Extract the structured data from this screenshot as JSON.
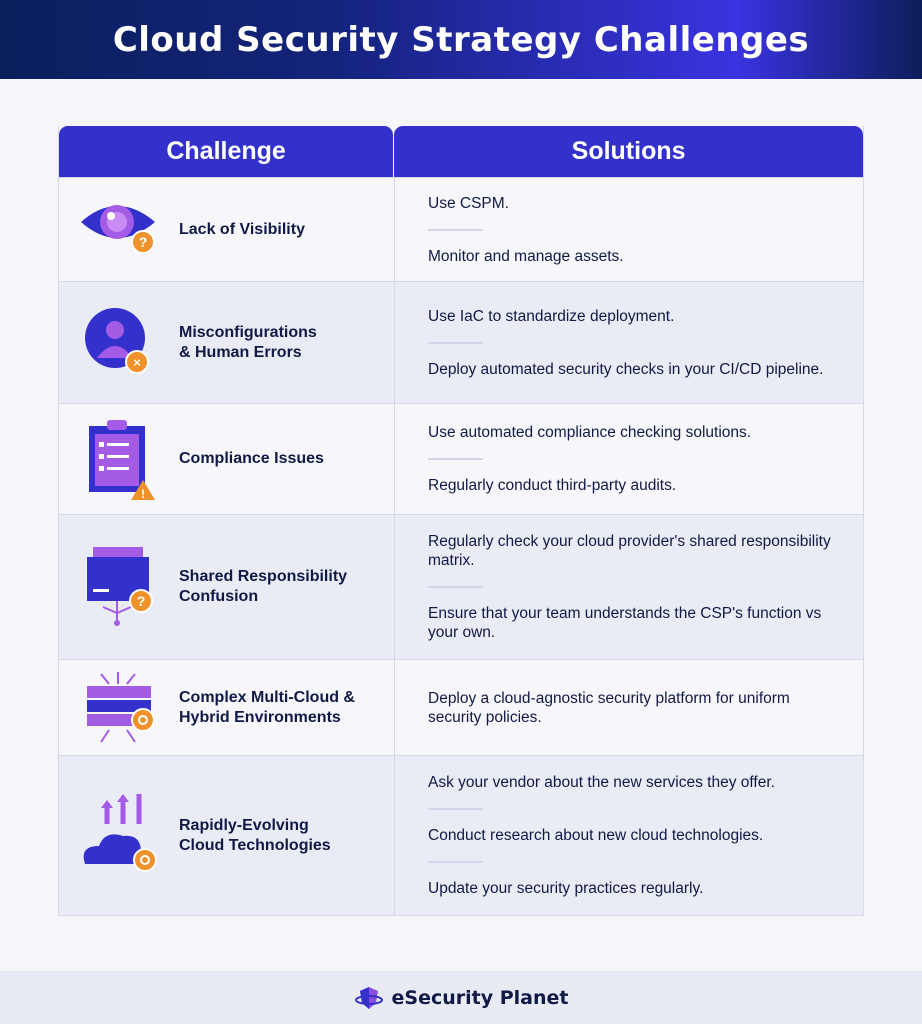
{
  "title": "Cloud Security Strategy Challenges",
  "headers": {
    "challenge": "Challenge",
    "solutions": "Solutions"
  },
  "rows": [
    {
      "icon": "eye-question-icon",
      "challenge": "Lack of Visibility",
      "solutions": [
        "Use CSPM.",
        "Monitor and manage assets."
      ]
    },
    {
      "icon": "user-error-icon",
      "challenge": "Misconfigurations\n& Human Errors",
      "solutions": [
        "Use IaC to standardize deployment.",
        "Deploy automated security checks in your CI/CD pipeline."
      ]
    },
    {
      "icon": "clipboard-warning-icon",
      "challenge": "Compliance Issues",
      "solutions": [
        "Use automated compliance checking solutions.",
        "Regularly conduct third-party audits."
      ]
    },
    {
      "icon": "folder-question-icon",
      "challenge": "Shared Responsibility\nConfusion",
      "solutions": [
        "Regularly check your cloud provider's shared responsibility matrix.",
        "Ensure that your team understands the CSP's function vs your own."
      ]
    },
    {
      "icon": "server-gear-icon",
      "challenge": "Complex Multi-Cloud &\nHybrid Environments",
      "solutions": [
        "Deploy a cloud-agnostic security platform for uniform security policies."
      ]
    },
    {
      "icon": "cloud-growth-icon",
      "challenge": "Rapidly-Evolving\nCloud Technologies",
      "solutions": [
        "Ask your vendor about the new services they offer.",
        "Conduct research about new cloud technologies.",
        "Update your security practices regularly."
      ]
    }
  ],
  "footer": {
    "brand": "eSecurity Planet"
  },
  "colors": {
    "accent": "#3430cc",
    "purple": "#a45be6",
    "orange": "#f0922b",
    "navy": "#101a45"
  }
}
